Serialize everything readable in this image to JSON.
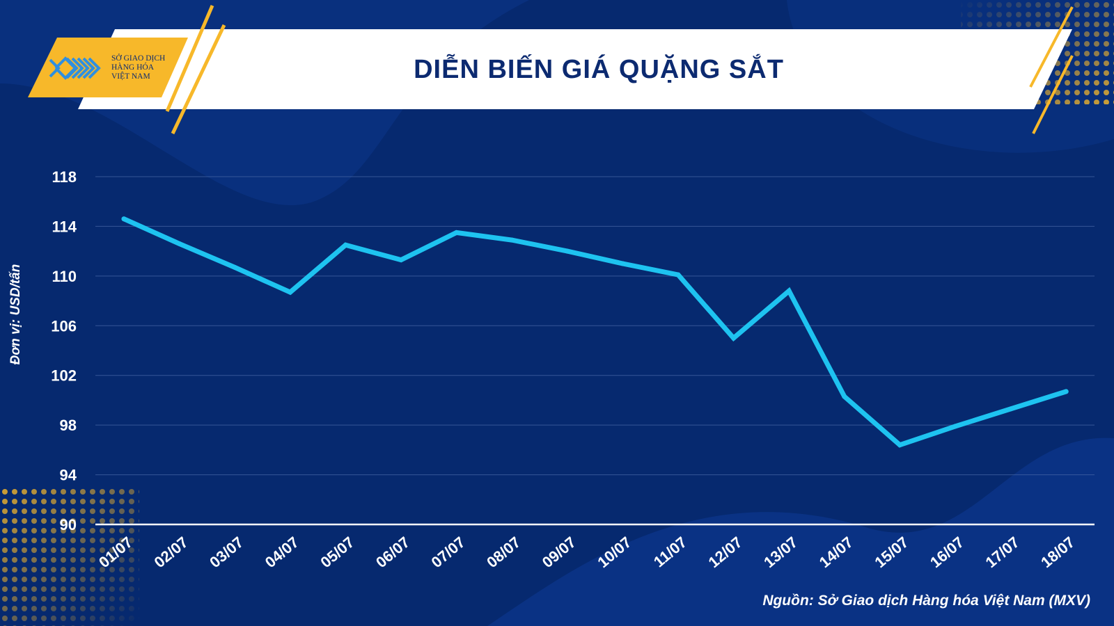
{
  "header": {
    "title": "DIỄN BIẾN GIÁ QUẶNG SẮT",
    "logo_lines": [
      "SỞ GIAO DỊCH",
      "HÀNG HÓA",
      "VIỆT NAM"
    ]
  },
  "unit_label": "Đơn vị: USD/tấn",
  "source": "Nguồn: Sở Giao dịch Hàng hóa Việt Nam (MXV)",
  "colors": {
    "background": "#06296f",
    "line": "#1ec3f0",
    "accent": "#f7b82a",
    "title": "#0c2a70"
  },
  "chart_data": {
    "type": "line",
    "title": "DIỄN BIẾN GIÁ QUẶNG SẮT",
    "ylabel": "Đơn vị: USD/tấn",
    "xlabel": "",
    "categories": [
      "01/07",
      "02/07",
      "03/07",
      "04/07",
      "05/07",
      "06/07",
      "07/07",
      "08/07",
      "09/07",
      "10/07",
      "11/07",
      "12/07",
      "13/07",
      "14/07",
      "15/07",
      "16/07",
      "17/07",
      "18/07"
    ],
    "series": [
      {
        "values": [
          114.6,
          112.6,
          110.7,
          108.7,
          112.5,
          111.3,
          113.5,
          112.9,
          112.0,
          111.0,
          110.1,
          105.0,
          108.8,
          100.3,
          96.4,
          97.9,
          99.3,
          100.7
        ]
      }
    ],
    "yticks": [
      90,
      94,
      98,
      102,
      106,
      110,
      114,
      118
    ],
    "ylim": [
      90,
      118
    ],
    "grid": true
  }
}
